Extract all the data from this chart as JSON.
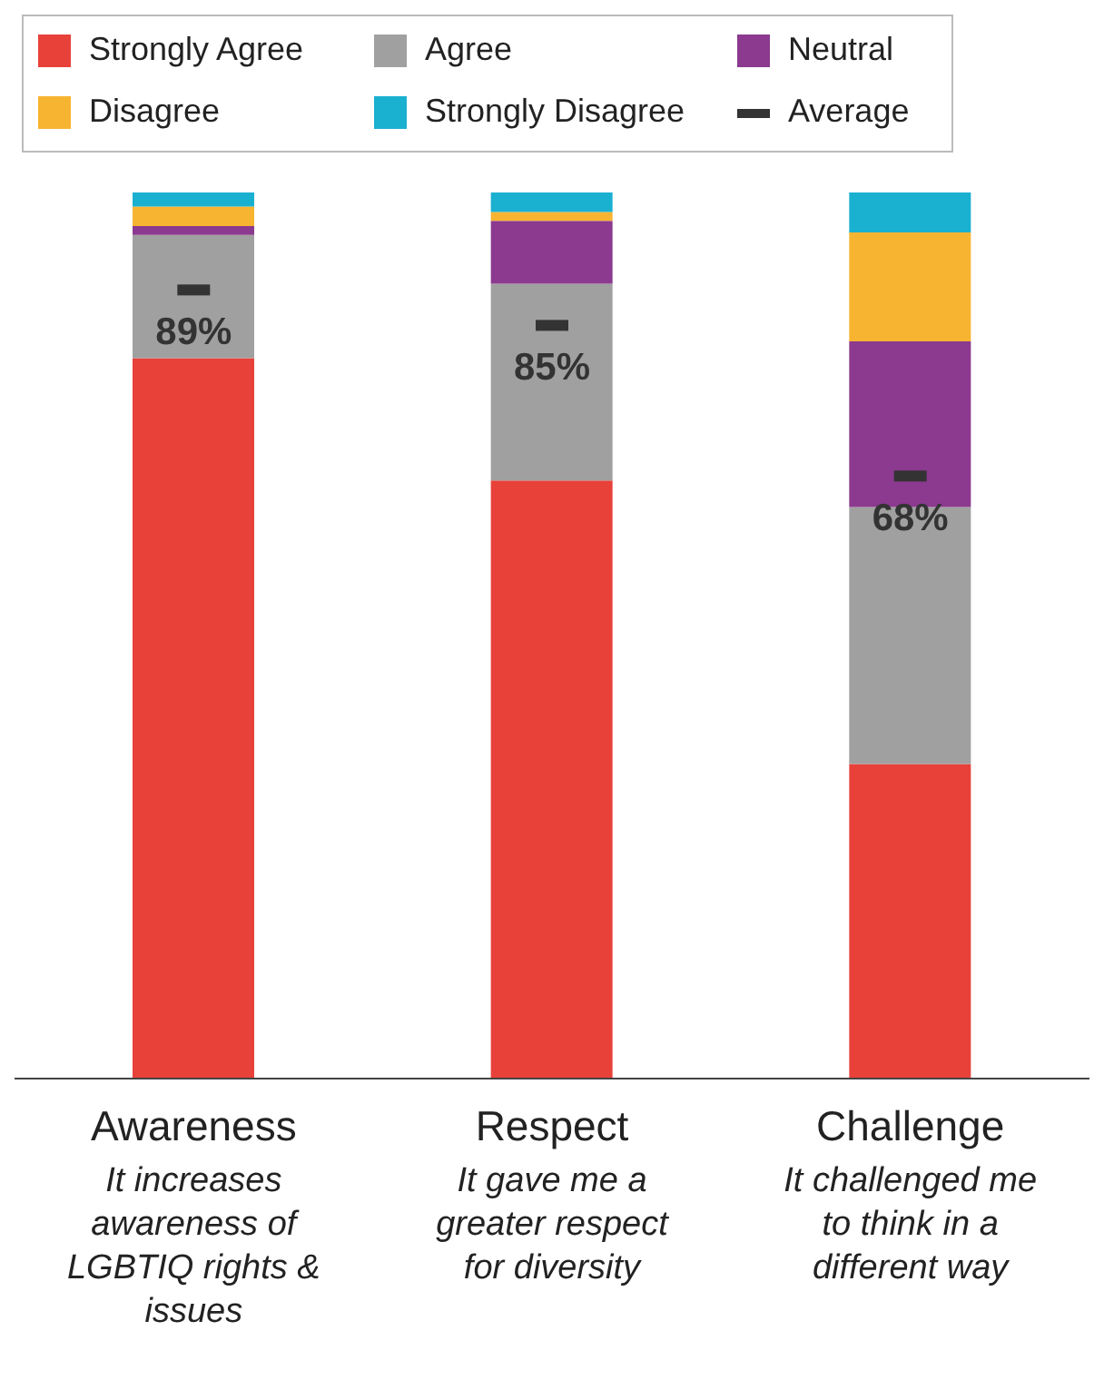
{
  "chart_data": {
    "type": "bar",
    "stacked": true,
    "legend": "top left",
    "ylim": [
      0,
      100
    ],
    "categories": [
      "Awareness\nIt increases\nawareness of\nLGBTIQ rights &\nissues",
      "Respect\nIt gave me a\ngreater respect\nfor diversity",
      "Challenge\nIt challenged me\nto think in a\ndifferent way"
    ],
    "series": [
      {
        "name": "Strongly Agree",
        "color": "#e8413a",
        "values": [
          81.3,
          67.5,
          35.5
        ]
      },
      {
        "name": "Agree",
        "color": "#a0a0a0",
        "values": [
          13.9,
          22.2,
          29
        ]
      },
      {
        "name": "Neutral",
        "color": "#8b3a8f",
        "values": [
          1,
          7.1,
          18.7
        ]
      },
      {
        "name": "Disagree",
        "color": "#f7b431",
        "values": [
          2.2,
          1,
          12.3
        ]
      },
      {
        "name": "Strongly Disagree",
        "color": "#1ab0d0",
        "values": [
          1.6,
          2.2,
          4.5
        ]
      },
      {
        "name": "Average",
        "type": "scatter",
        "color": "#333333",
        "values": [
          89,
          85,
          68
        ],
        "value_labels": [
          "89%",
          "85%",
          "68%"
        ]
      }
    ]
  }
}
